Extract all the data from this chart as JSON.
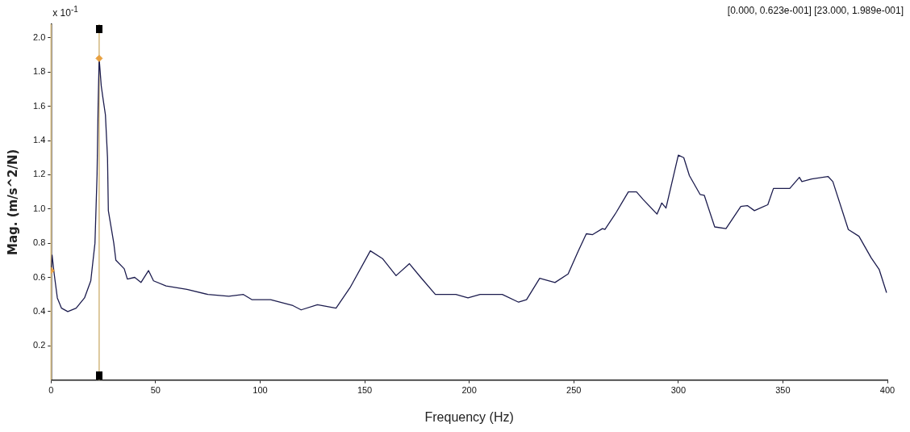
{
  "chart_data": {
    "type": "line",
    "xlabel": "Frequency (Hz)",
    "ylabel": "Mag. (m/s^2/N)",
    "annotations": [
      "x 10$^{-1}$",
      "[0.000, 0.623e-001] [23.000, 1.989e-001]"
    ],
    "xlim": [
      0,
      400
    ],
    "xticks": [
      0,
      50,
      100,
      150,
      200,
      250,
      300,
      350,
      400
    ],
    "ylim": [
      0,
      2.08
    ],
    "yticks": [
      0.2,
      0.4,
      0.6,
      0.8,
      {
        "value": 1,
        "label": "1.0"
      },
      1.2,
      1.4,
      1.6,
      1.8,
      {
        "value": 2,
        "label": "2.0"
      }
    ],
    "grid": false,
    "legend": false,
    "marker": "none",
    "line_style": "solid",
    "ref_lines": [
      {
        "axis": "x",
        "value": 0,
        "color": "#d2b87e"
      },
      {
        "axis": "x",
        "value": 23,
        "color": "#d2b87e"
      }
    ],
    "series": [
      {
        "type": "line",
        "color": "#1c1c4e",
        "x": [
          0,
          0.5,
          1.5,
          3,
          5,
          8,
          12,
          16,
          19,
          21,
          22,
          22.5,
          23,
          24,
          24.8,
          26,
          27,
          27.4,
          30,
          31,
          35,
          36.5,
          40,
          43,
          46.6,
          49,
          55,
          65,
          75,
          85,
          92,
          96,
          105,
          115.7,
          119.6,
          127.4,
          136.3,
          143,
          152.7,
          158.5,
          165,
          171.4,
          176.8,
          183.8,
          193.6,
          199.4,
          205.2,
          215.8,
          223.6,
          227.4,
          233.7,
          241,
          247.3,
          252,
          256,
          259,
          263.7,
          264.9,
          270.3,
          276.1,
          280,
          283.2,
          289.8,
          292.1,
          294.1,
          300,
          302.6,
          305.3,
          310.4,
          312.4,
          317.4,
          322.8,
          329.9,
          333,
          336.4,
          342.8,
          345.5,
          353.3,
          357.9,
          359.1,
          363.8,
          371.6,
          373.9,
          381.3,
          386.4,
          392.2,
          396.1,
          399.6
        ],
        "values": [
          0.64,
          0.73,
          0.62,
          0.48,
          0.42,
          0.4,
          0.42,
          0.48,
          0.58,
          0.8,
          1.2,
          1.6,
          1.88,
          1.72,
          1.65,
          1.55,
          1.3,
          0.99,
          0.8,
          0.7,
          0.65,
          0.59,
          0.6,
          0.57,
          0.64,
          0.58,
          0.55,
          0.53,
          0.5,
          0.49,
          0.5,
          0.47,
          0.47,
          0.435,
          0.41,
          0.44,
          0.42,
          0.54,
          0.755,
          0.71,
          0.61,
          0.68,
          0.6,
          0.5,
          0.5,
          0.48,
          0.5,
          0.5,
          0.455,
          0.47,
          0.595,
          0.57,
          0.62,
          0.75,
          0.855,
          0.85,
          0.885,
          0.88,
          0.98,
          1.1,
          1.1,
          1.055,
          0.97,
          1.035,
          1.005,
          1.315,
          1.3,
          1.195,
          1.085,
          1.08,
          0.895,
          0.885,
          1.015,
          1.02,
          0.99,
          1.025,
          1.12,
          1.12,
          1.185,
          1.16,
          1.175,
          1.19,
          1.16,
          0.88,
          0.84,
          0.715,
          0.645,
          0.51
        ]
      },
      {
        "type": "scatter",
        "color": "#e8a040",
        "marker": "diamond",
        "x": [
          0,
          23
        ],
        "values": [
          0.64,
          1.88
        ]
      }
    ]
  }
}
